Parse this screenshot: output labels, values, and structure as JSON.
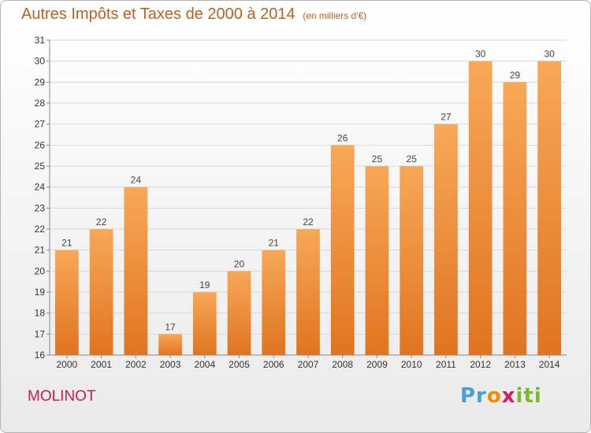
{
  "title": "Autres Impôts et Taxes de 2000 à 2014",
  "title_unit": "(en milliers d'€)",
  "commune": "MOLINOT",
  "logo": {
    "parts": [
      "Pr",
      "o",
      "x",
      "iti"
    ]
  },
  "colors": {
    "bar_top": "#f7a858",
    "bar_bottom": "#e07420",
    "grid": "#d8d8d8",
    "title": "#c06020",
    "commune": "#d11a4a"
  },
  "chart_data": {
    "type": "bar",
    "title": "Autres Impôts et Taxes de 2000 à 2014",
    "subtitle": "(en milliers d'€)",
    "xlabel": "",
    "ylabel": "",
    "categories": [
      "2000",
      "2001",
      "2002",
      "2003",
      "2004",
      "2005",
      "2006",
      "2007",
      "2008",
      "2009",
      "2010",
      "2011",
      "2012",
      "2013",
      "2014"
    ],
    "values": [
      21,
      22,
      24,
      17,
      19,
      20,
      21,
      22,
      26,
      25,
      25,
      27,
      30,
      29,
      30
    ],
    "ylim": [
      16,
      31
    ],
    "yticks": [
      16,
      17,
      18,
      19,
      20,
      21,
      22,
      23,
      24,
      25,
      26,
      27,
      28,
      29,
      30,
      31
    ],
    "grid": true,
    "data_labels": true
  }
}
